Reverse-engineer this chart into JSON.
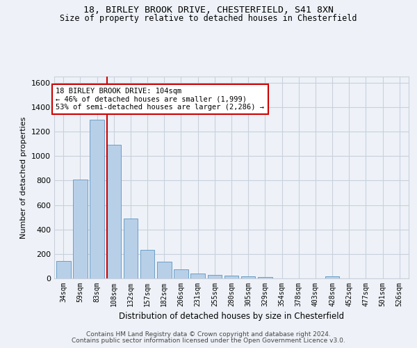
{
  "title_line1": "18, BIRLEY BROOK DRIVE, CHESTERFIELD, S41 8XN",
  "title_line2": "Size of property relative to detached houses in Chesterfield",
  "xlabel": "Distribution of detached houses by size in Chesterfield",
  "ylabel": "Number of detached properties",
  "categories": [
    "34sqm",
    "59sqm",
    "83sqm",
    "108sqm",
    "132sqm",
    "157sqm",
    "182sqm",
    "206sqm",
    "231sqm",
    "255sqm",
    "280sqm",
    "305sqm",
    "329sqm",
    "354sqm",
    "378sqm",
    "403sqm",
    "428sqm",
    "452sqm",
    "477sqm",
    "501sqm",
    "526sqm"
  ],
  "values": [
    140,
    810,
    1295,
    1090,
    490,
    235,
    135,
    75,
    42,
    27,
    20,
    16,
    12,
    0,
    0,
    0,
    18,
    0,
    0,
    0,
    0
  ],
  "bar_color": "#b8cfe8",
  "bar_edge_color": "#6a9fc8",
  "vline_x_index": 3,
  "vline_color": "#cc0000",
  "annotation_line1": "18 BIRLEY BROOK DRIVE: 104sqm",
  "annotation_line2": "← 46% of detached houses are smaller (1,999)",
  "annotation_line3": "53% of semi-detached houses are larger (2,286) →",
  "annotation_box_color": "#cc0000",
  "ylim": [
    0,
    1650
  ],
  "yticks": [
    0,
    200,
    400,
    600,
    800,
    1000,
    1200,
    1400,
    1600
  ],
  "footer_line1": "Contains HM Land Registry data © Crown copyright and database right 2024.",
  "footer_line2": "Contains public sector information licensed under the Open Government Licence v3.0.",
  "bg_color": "#eef2f8",
  "grid_color": "#c8d0dc"
}
